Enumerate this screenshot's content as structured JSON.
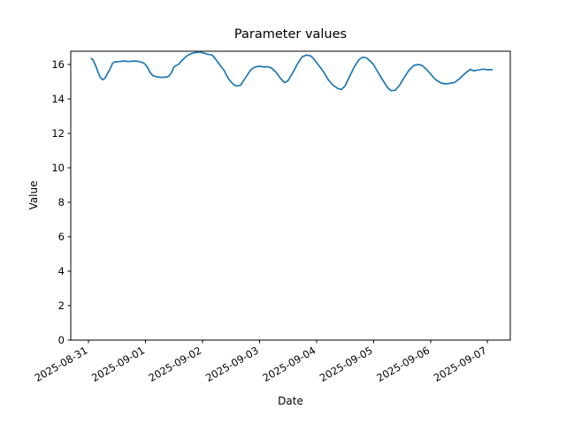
{
  "chart_data": {
    "type": "line",
    "title": "Parameter values",
    "xlabel": "Date",
    "ylabel": "Value",
    "x_tick_labels": [
      "2025-08-31",
      "2025-09-01",
      "2025-09-02",
      "2025-09-03",
      "2025-09-04",
      "2025-09-05",
      "2025-09-06",
      "2025-09-07"
    ],
    "x_tick_rotation_deg": -30,
    "y_ticks": [
      0,
      2,
      4,
      6,
      8,
      10,
      12,
      14,
      16
    ],
    "ylim": [
      0,
      16.77
    ],
    "xlim_days": [
      -0.31,
      7.4
    ],
    "x_unit": "days since 2025-08-31 00:00",
    "grid": false,
    "legend": "none",
    "background_color": "#ffffff",
    "series": [
      {
        "name": "Parameter",
        "color": "#1f77b4",
        "marker": "none",
        "points": [
          [
            0.05,
            16.35
          ],
          [
            0.08,
            16.28
          ],
          [
            0.13,
            15.9
          ],
          [
            0.17,
            15.55
          ],
          [
            0.21,
            15.25
          ],
          [
            0.25,
            15.12
          ],
          [
            0.29,
            15.2
          ],
          [
            0.33,
            15.45
          ],
          [
            0.38,
            15.75
          ],
          [
            0.42,
            16.05
          ],
          [
            0.46,
            16.15
          ],
          [
            0.54,
            16.17
          ],
          [
            0.63,
            16.2
          ],
          [
            0.71,
            16.17
          ],
          [
            0.79,
            16.2
          ],
          [
            0.88,
            16.18
          ],
          [
            0.96,
            16.1
          ],
          [
            1.0,
            16.0
          ],
          [
            1.04,
            15.8
          ],
          [
            1.08,
            15.55
          ],
          [
            1.13,
            15.35
          ],
          [
            1.21,
            15.28
          ],
          [
            1.29,
            15.25
          ],
          [
            1.38,
            15.28
          ],
          [
            1.42,
            15.35
          ],
          [
            1.46,
            15.55
          ],
          [
            1.5,
            15.85
          ],
          [
            1.54,
            15.95
          ],
          [
            1.58,
            16.0
          ],
          [
            1.63,
            16.2
          ],
          [
            1.71,
            16.45
          ],
          [
            1.79,
            16.62
          ],
          [
            1.88,
            16.7
          ],
          [
            1.96,
            16.72
          ],
          [
            2.04,
            16.65
          ],
          [
            2.08,
            16.6
          ],
          [
            2.17,
            16.55
          ],
          [
            2.21,
            16.4
          ],
          [
            2.29,
            16.05
          ],
          [
            2.38,
            15.65
          ],
          [
            2.46,
            15.15
          ],
          [
            2.54,
            14.85
          ],
          [
            2.6,
            14.75
          ],
          [
            2.67,
            14.8
          ],
          [
            2.71,
            15.0
          ],
          [
            2.79,
            15.4
          ],
          [
            2.85,
            15.7
          ],
          [
            2.92,
            15.85
          ],
          [
            3.0,
            15.9
          ],
          [
            3.08,
            15.85
          ],
          [
            3.13,
            15.88
          ],
          [
            3.21,
            15.8
          ],
          [
            3.29,
            15.55
          ],
          [
            3.38,
            15.15
          ],
          [
            3.44,
            14.95
          ],
          [
            3.5,
            15.05
          ],
          [
            3.58,
            15.5
          ],
          [
            3.67,
            16.05
          ],
          [
            3.75,
            16.45
          ],
          [
            3.83,
            16.55
          ],
          [
            3.9,
            16.5
          ],
          [
            3.96,
            16.3
          ],
          [
            4.04,
            15.95
          ],
          [
            4.13,
            15.55
          ],
          [
            4.21,
            15.1
          ],
          [
            4.29,
            14.8
          ],
          [
            4.38,
            14.6
          ],
          [
            4.44,
            14.55
          ],
          [
            4.5,
            14.75
          ],
          [
            4.58,
            15.3
          ],
          [
            4.67,
            15.9
          ],
          [
            4.75,
            16.3
          ],
          [
            4.81,
            16.42
          ],
          [
            4.88,
            16.38
          ],
          [
            4.94,
            16.2
          ],
          [
            5.0,
            16.0
          ],
          [
            5.08,
            15.55
          ],
          [
            5.17,
            15.05
          ],
          [
            5.25,
            14.65
          ],
          [
            5.31,
            14.48
          ],
          [
            5.38,
            14.5
          ],
          [
            5.46,
            14.8
          ],
          [
            5.54,
            15.25
          ],
          [
            5.63,
            15.7
          ],
          [
            5.71,
            15.95
          ],
          [
            5.79,
            16.0
          ],
          [
            5.85,
            15.95
          ],
          [
            5.92,
            15.75
          ],
          [
            6.0,
            15.45
          ],
          [
            6.08,
            15.15
          ],
          [
            6.17,
            14.95
          ],
          [
            6.25,
            14.87
          ],
          [
            6.33,
            14.9
          ],
          [
            6.42,
            14.95
          ],
          [
            6.5,
            15.15
          ],
          [
            6.58,
            15.4
          ],
          [
            6.65,
            15.6
          ],
          [
            6.7,
            15.72
          ],
          [
            6.76,
            15.63
          ],
          [
            6.83,
            15.68
          ],
          [
            6.92,
            15.73
          ],
          [
            7.0,
            15.7
          ],
          [
            7.08,
            15.7
          ]
        ]
      }
    ]
  }
}
